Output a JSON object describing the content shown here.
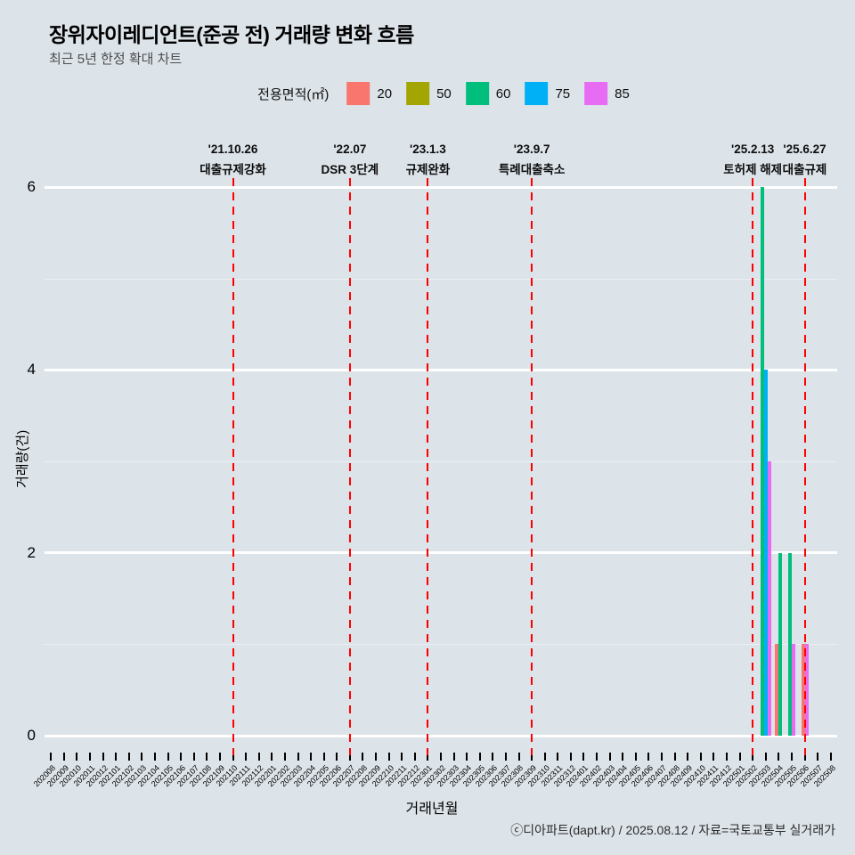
{
  "title": "장위자이레디언트(준공 전) 거래량 변화 흐름",
  "subtitle": "최근 5년 한정 확대 차트",
  "colors": {
    "background": "#dce3e9",
    "grid": "#ffffff",
    "event_line": "#ff0000"
  },
  "legend": {
    "label": "전용면적(㎡)",
    "items": [
      {
        "label": "20",
        "color": "#F8766D"
      },
      {
        "label": "50",
        "color": "#A3A500"
      },
      {
        "label": "60",
        "color": "#00BF7D"
      },
      {
        "label": "75",
        "color": "#00B0F6"
      },
      {
        "label": "85",
        "color": "#E76BF3"
      }
    ]
  },
  "axes": {
    "x_label": "거래년월",
    "y_label": "거래량(건)",
    "y_ticks": [
      0,
      2,
      4,
      6
    ]
  },
  "events": [
    {
      "date": "'21.10.26",
      "label": "대출규제강화",
      "month": "202110"
    },
    {
      "date": "'22.07",
      "label": "DSR 3단계",
      "month": "202207"
    },
    {
      "date": "'23.1.3",
      "label": "규제완화",
      "month": "202301"
    },
    {
      "date": "'23.9.7",
      "label": "특례대출축소",
      "month": "202309"
    },
    {
      "date": "'25.2.13",
      "label": "토허제 해제",
      "month": "202502"
    },
    {
      "date": "'25.6.27",
      "label": "대출규제",
      "month": "202506"
    }
  ],
  "footer": "ⓒ디아파트(dapt.kr) / 2025.08.12 / 자료=국토교통부 실거래가",
  "chart_data": {
    "type": "bar",
    "title": "장위자이레디언트(준공 전) 거래량 변화 흐름",
    "subtitle": "최근 5년 한정 확대 차트",
    "xlabel": "거래년월",
    "ylabel": "거래량(건)",
    "ylim": [
      0,
      6
    ],
    "grid": true,
    "legend_position": "top",
    "categories": [
      "202008",
      "202009",
      "202010",
      "202011",
      "202012",
      "202101",
      "202102",
      "202103",
      "202104",
      "202105",
      "202106",
      "202107",
      "202108",
      "202109",
      "202110",
      "202111",
      "202112",
      "202201",
      "202202",
      "202203",
      "202204",
      "202205",
      "202206",
      "202207",
      "202208",
      "202209",
      "202210",
      "202211",
      "202212",
      "202301",
      "202302",
      "202303",
      "202304",
      "202305",
      "202306",
      "202307",
      "202308",
      "202309",
      "202310",
      "202311",
      "202312",
      "202401",
      "202402",
      "202403",
      "202404",
      "202405",
      "202406",
      "202407",
      "202408",
      "202409",
      "202410",
      "202411",
      "202412",
      "202501",
      "202502",
      "202503",
      "202504",
      "202505",
      "202506",
      "202507",
      "202508"
    ],
    "series": [
      {
        "name": "20",
        "color": "#F8766D",
        "data": {
          "202504": 1,
          "202506": 1
        }
      },
      {
        "name": "50",
        "color": "#A3A500",
        "data": {}
      },
      {
        "name": "60",
        "color": "#00BF7D",
        "data": {
          "202503": 6,
          "202504": 2,
          "202505": 2
        }
      },
      {
        "name": "75",
        "color": "#00B0F6",
        "data": {
          "202503": 4
        }
      },
      {
        "name": "85",
        "color": "#E76BF3",
        "data": {
          "202503": 3,
          "202505": 1,
          "202506": 1
        }
      }
    ]
  }
}
